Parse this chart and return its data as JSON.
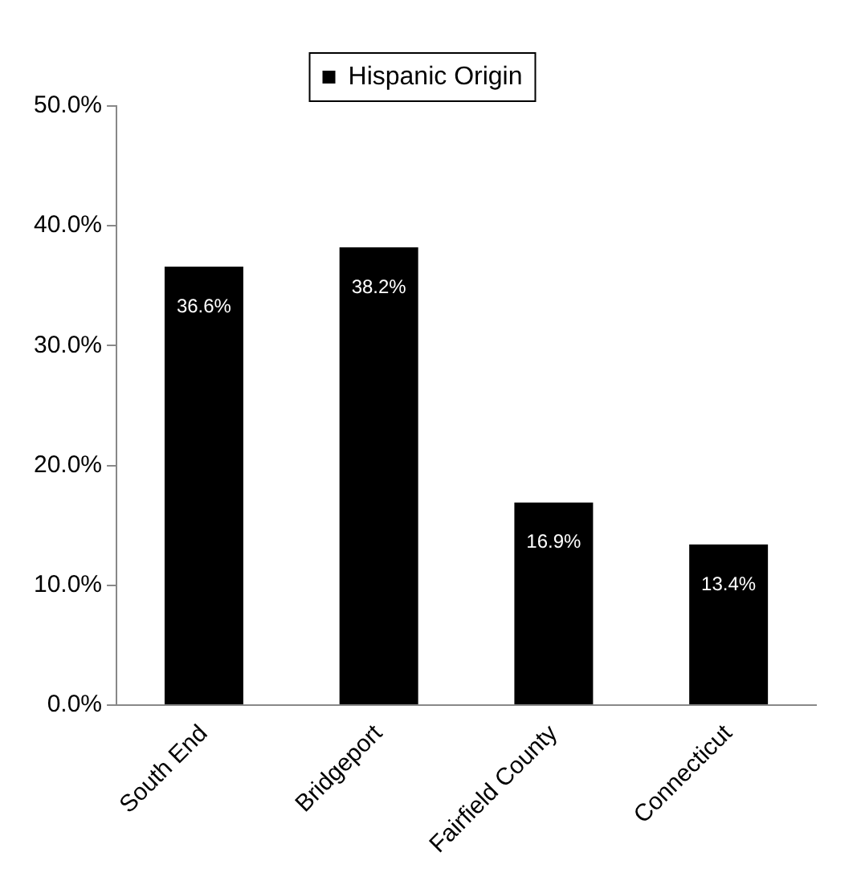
{
  "chart_data": {
    "type": "bar",
    "categories": [
      "South End",
      "Bridgeport",
      "Fairfield County",
      "Connecticut"
    ],
    "series": [
      {
        "name": "Hispanic Origin",
        "color": "#000000",
        "values": [
          36.6,
          38.2,
          16.9,
          13.4
        ],
        "value_labels": [
          "36.6%",
          "38.2%",
          "16.9%",
          "13.4%"
        ]
      }
    ],
    "ylim": [
      0,
      50
    ],
    "yticks": [
      {
        "value": 0,
        "label": "0.0%"
      },
      {
        "value": 10,
        "label": "10.0%"
      },
      {
        "value": 20,
        "label": "20.0%"
      },
      {
        "value": 30,
        "label": "30.0%"
      },
      {
        "value": 40,
        "label": "40.0%"
      },
      {
        "value": 50,
        "label": "50.0%"
      }
    ],
    "grid": false,
    "legend": "top"
  }
}
